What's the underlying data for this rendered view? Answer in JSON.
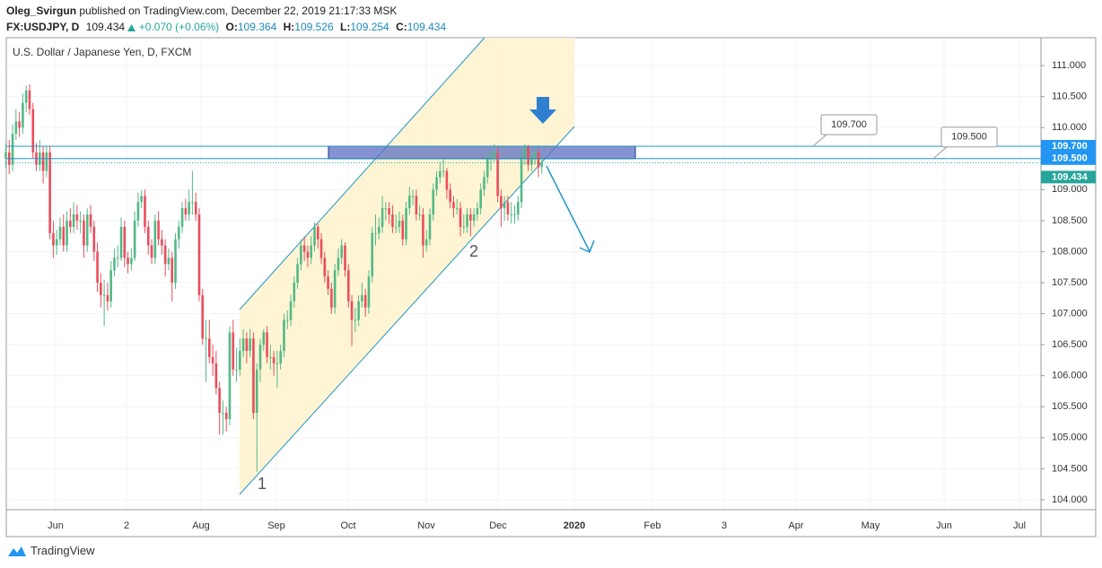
{
  "chart_data": {
    "type": "candlestick",
    "publisher": "Oleg_Svirgun",
    "published_text": "published on TradingView.com, December 22, 2019 21:17:33 MSK",
    "symbol": "FX:USDJPY, D",
    "change": "+0.070 (+0.06%)",
    "ohlc_labels": [
      "O:",
      "H:",
      "L:",
      "C:"
    ],
    "title": "U.S. Dollar / Japanese Yen, D, FXCM",
    "brand": "TradingView",
    "up_color": "#53b987",
    "down_color": "#eb4d5c",
    "ylim": [
      103.84,
      111.45
    ],
    "yticks": [
      {
        "value": 104,
        "label": "104.000"
      },
      {
        "value": 104.5,
        "label": "104.500"
      },
      {
        "value": 105,
        "label": "105.000"
      },
      {
        "value": 105.5,
        "label": "105.500"
      },
      {
        "value": 106,
        "label": "106.000"
      },
      {
        "value": 106.5,
        "label": "106.500"
      },
      {
        "value": 107,
        "label": "107.000"
      },
      {
        "value": 107.5,
        "label": "107.500"
      },
      {
        "value": 108,
        "label": "108.000"
      },
      {
        "value": 108.5,
        "label": "108.500"
      },
      {
        "value": 109,
        "label": "109.000"
      },
      {
        "value": 109.5,
        "label": "109.500"
      },
      {
        "value": 110,
        "label": "110.000"
      },
      {
        "value": 110.5,
        "label": "110.500"
      },
      {
        "value": 111,
        "label": "111.000"
      }
    ],
    "x_tick_labels": [
      "Jun",
      "2",
      "Aug",
      "Sep",
      "Oct",
      "Nov",
      "Dec",
      "2020",
      "Feb",
      "3",
      "Apr",
      "May",
      "Jun",
      "Jul"
    ],
    "horizontal_lines": [
      {
        "value": 109.7,
        "label": "109.700"
      },
      {
        "value": 109.5,
        "label": "109.500"
      }
    ],
    "zone": [
      109.5,
      109.7
    ],
    "annotations": [
      "1",
      "2"
    ],
    "ohlc": [
      [
        109.5,
        109.75,
        109.35,
        109.6
      ],
      [
        109.6,
        109.8,
        109.25,
        109.4
      ],
      [
        109.4,
        110.05,
        109.3,
        109.9
      ],
      [
        109.9,
        110.3,
        109.8,
        110.1
      ],
      [
        110.1,
        110.25,
        109.85,
        110.0
      ],
      [
        110.0,
        110.55,
        109.9,
        110.4
      ],
      [
        110.4,
        110.68,
        110.25,
        110.6
      ],
      [
        110.6,
        110.7,
        110.2,
        110.3
      ],
      [
        110.3,
        110.4,
        109.5,
        109.6
      ],
      [
        109.6,
        109.75,
        109.3,
        109.4
      ],
      [
        109.4,
        109.8,
        109.3,
        109.6
      ],
      [
        109.6,
        109.7,
        109.1,
        109.3
      ],
      [
        109.3,
        109.7,
        109.2,
        109.6
      ],
      [
        109.6,
        109.7,
        108.2,
        108.3
      ],
      [
        108.3,
        108.5,
        107.9,
        108.1
      ],
      [
        108.1,
        108.35,
        107.95,
        108.2
      ],
      [
        108.2,
        108.55,
        108.1,
        108.4
      ],
      [
        108.4,
        108.6,
        108.0,
        108.1
      ],
      [
        108.1,
        108.65,
        108.0,
        108.5
      ],
      [
        108.5,
        108.7,
        108.3,
        108.4
      ],
      [
        108.4,
        108.8,
        108.3,
        108.6
      ],
      [
        108.6,
        108.75,
        108.35,
        108.5
      ],
      [
        108.5,
        108.65,
        108.3,
        108.5
      ],
      [
        108.5,
        108.6,
        107.9,
        108.1
      ],
      [
        108.1,
        108.7,
        108.0,
        108.6
      ],
      [
        108.6,
        108.75,
        108.3,
        108.4
      ],
      [
        108.4,
        108.5,
        107.85,
        108.0
      ],
      [
        108.0,
        108.15,
        107.35,
        107.5
      ],
      [
        107.5,
        107.65,
        107.1,
        107.3
      ],
      [
        107.3,
        107.55,
        106.8,
        107.3
      ],
      [
        107.3,
        107.5,
        107.05,
        107.2
      ],
      [
        107.2,
        107.85,
        107.1,
        107.7
      ],
      [
        107.7,
        108.05,
        107.6,
        107.9
      ],
      [
        107.9,
        108.1,
        107.75,
        107.9
      ],
      [
        107.9,
        108.55,
        107.85,
        108.4
      ],
      [
        108.4,
        108.5,
        107.75,
        107.9
      ],
      [
        107.9,
        108.0,
        107.65,
        107.8
      ],
      [
        107.8,
        108.05,
        107.7,
        107.9
      ],
      [
        107.9,
        108.65,
        107.85,
        108.5
      ],
      [
        108.5,
        108.95,
        108.4,
        108.8
      ],
      [
        108.8,
        108.99,
        108.7,
        108.9
      ],
      [
        108.9,
        109.0,
        108.3,
        108.4
      ],
      [
        108.4,
        108.5,
        107.95,
        108.1
      ],
      [
        108.1,
        108.2,
        107.8,
        107.9
      ],
      [
        107.9,
        108.6,
        107.8,
        108.5
      ],
      [
        108.5,
        108.65,
        108.1,
        108.2
      ],
      [
        108.2,
        108.35,
        107.95,
        108.1
      ],
      [
        108.1,
        108.2,
        107.6,
        107.8
      ],
      [
        107.8,
        108.05,
        107.7,
        107.9
      ],
      [
        107.9,
        108.0,
        107.2,
        107.5
      ],
      [
        107.5,
        108.3,
        107.4,
        108.2
      ],
      [
        108.2,
        108.5,
        108.05,
        108.4
      ],
      [
        108.4,
        108.8,
        108.3,
        108.7
      ],
      [
        108.7,
        108.85,
        108.5,
        108.6
      ],
      [
        108.6,
        109.0,
        108.5,
        108.8
      ],
      [
        108.8,
        109.3,
        108.6,
        108.8
      ],
      [
        108.8,
        108.95,
        108.5,
        108.6
      ],
      [
        108.6,
        108.7,
        107.2,
        107.3
      ],
      [
        107.3,
        107.4,
        106.5,
        106.6
      ],
      [
        106.6,
        106.9,
        105.9,
        106.6
      ],
      [
        106.6,
        106.9,
        106.2,
        106.3
      ],
      [
        106.3,
        106.5,
        106.0,
        106.2
      ],
      [
        106.2,
        106.4,
        105.7,
        105.8
      ],
      [
        105.8,
        105.9,
        105.05,
        105.4
      ],
      [
        105.4,
        105.6,
        105.05,
        105.4
      ],
      [
        105.4,
        105.5,
        105.1,
        105.3
      ],
      [
        105.3,
        106.8,
        105.2,
        106.7
      ],
      [
        106.7,
        106.9,
        106.0,
        106.1
      ],
      [
        106.1,
        106.45,
        105.9,
        106.1
      ],
      [
        106.1,
        106.6,
        106.0,
        106.4
      ],
      [
        106.4,
        106.75,
        106.3,
        106.6
      ],
      [
        106.6,
        106.7,
        106.2,
        106.4
      ],
      [
        106.4,
        106.75,
        106.3,
        106.6
      ],
      [
        106.6,
        106.7,
        105.3,
        105.4
      ],
      [
        105.4,
        106.2,
        104.45,
        106.1
      ],
      [
        106.1,
        106.6,
        105.9,
        106.5
      ],
      [
        106.5,
        106.75,
        106.4,
        106.7
      ],
      [
        106.7,
        106.8,
        106.2,
        106.3
      ],
      [
        106.3,
        106.5,
        106.1,
        106.3
      ],
      [
        106.3,
        106.4,
        106.0,
        106.2
      ],
      [
        106.2,
        106.4,
        105.8,
        106.2
      ],
      [
        106.2,
        106.5,
        106.1,
        106.4
      ],
      [
        106.4,
        107.0,
        106.3,
        106.9
      ],
      [
        106.9,
        107.05,
        106.75,
        106.9
      ],
      [
        106.9,
        107.3,
        106.8,
        107.2
      ],
      [
        107.2,
        107.6,
        107.1,
        107.5
      ],
      [
        107.5,
        107.9,
        107.4,
        107.8
      ],
      [
        107.8,
        108.2,
        107.7,
        108.1
      ],
      [
        108.1,
        108.25,
        107.85,
        108.0
      ],
      [
        108.0,
        108.1,
        107.75,
        107.9
      ],
      [
        107.9,
        108.25,
        107.8,
        108.1
      ],
      [
        108.1,
        108.47,
        108.0,
        108.4
      ],
      [
        108.4,
        108.45,
        108.05,
        108.2
      ],
      [
        108.2,
        108.3,
        107.8,
        107.9
      ],
      [
        107.9,
        108.0,
        107.5,
        107.6
      ],
      [
        107.6,
        107.7,
        107.3,
        107.4
      ],
      [
        107.4,
        107.5,
        107.0,
        107.1
      ],
      [
        107.1,
        107.8,
        107.0,
        107.7
      ],
      [
        107.7,
        108.05,
        107.6,
        107.9
      ],
      [
        107.9,
        108.2,
        107.8,
        108.1
      ],
      [
        108.1,
        108.15,
        107.6,
        107.7
      ],
      [
        107.7,
        107.8,
        107.1,
        107.2
      ],
      [
        107.2,
        107.3,
        106.48,
        106.9
      ],
      [
        106.9,
        107.1,
        106.7,
        106.9
      ],
      [
        106.9,
        107.3,
        106.8,
        107.2
      ],
      [
        107.2,
        107.5,
        107.1,
        107.3
      ],
      [
        107.3,
        107.4,
        106.95,
        107.1
      ],
      [
        107.1,
        107.7,
        107.0,
        107.6
      ],
      [
        107.6,
        108.4,
        107.5,
        108.3
      ],
      [
        108.3,
        108.6,
        108.1,
        108.3
      ],
      [
        108.3,
        108.55,
        108.2,
        108.4
      ],
      [
        108.4,
        108.9,
        108.3,
        108.7
      ],
      [
        108.7,
        108.8,
        108.5,
        108.7
      ],
      [
        108.7,
        108.8,
        108.45,
        108.6
      ],
      [
        108.6,
        108.75,
        108.3,
        108.4
      ],
      [
        108.4,
        108.6,
        108.3,
        108.4
      ],
      [
        108.4,
        108.65,
        108.3,
        108.5
      ],
      [
        108.5,
        108.6,
        108.1,
        108.2
      ],
      [
        108.2,
        108.8,
        108.1,
        108.7
      ],
      [
        108.7,
        109.05,
        108.6,
        108.9
      ],
      [
        108.9,
        109.0,
        108.75,
        108.9
      ],
      [
        108.9,
        109.0,
        108.5,
        108.6
      ],
      [
        108.6,
        108.75,
        108.5,
        108.6
      ],
      [
        108.6,
        108.7,
        107.9,
        108.1
      ],
      [
        108.1,
        108.35,
        108.0,
        108.2
      ],
      [
        108.2,
        108.7,
        108.1,
        108.6
      ],
      [
        108.6,
        109.1,
        108.5,
        109.0
      ],
      [
        109.0,
        109.3,
        108.9,
        109.2
      ],
      [
        109.2,
        109.45,
        109.1,
        109.3
      ],
      [
        109.3,
        109.5,
        109.2,
        109.3
      ],
      [
        109.3,
        109.35,
        108.85,
        109.0
      ],
      [
        109.0,
        109.1,
        108.7,
        108.8
      ],
      [
        108.8,
        108.9,
        108.55,
        108.7
      ],
      [
        108.7,
        108.85,
        108.6,
        108.7
      ],
      [
        108.7,
        108.8,
        108.25,
        108.4
      ],
      [
        108.4,
        108.6,
        108.3,
        108.4
      ],
      [
        108.4,
        108.7,
        108.3,
        108.6
      ],
      [
        108.6,
        108.7,
        108.25,
        108.5
      ],
      [
        108.5,
        108.7,
        108.4,
        108.6
      ],
      [
        108.6,
        108.8,
        108.5,
        108.7
      ],
      [
        108.7,
        109.1,
        108.6,
        109.0
      ],
      [
        109.0,
        109.3,
        108.9,
        109.2
      ],
      [
        109.2,
        109.6,
        109.1,
        109.5
      ],
      [
        109.5,
        109.65,
        109.3,
        109.5
      ],
      [
        109.5,
        109.73,
        109.45,
        109.6
      ],
      [
        109.6,
        109.7,
        108.8,
        108.9
      ],
      [
        108.9,
        109.0,
        108.4,
        108.7
      ],
      [
        108.7,
        108.9,
        108.5,
        108.8
      ],
      [
        108.8,
        108.9,
        108.5,
        108.6
      ],
      [
        108.6,
        108.8,
        108.45,
        108.6
      ],
      [
        108.6,
        108.75,
        108.45,
        108.6
      ],
      [
        108.6,
        108.9,
        108.5,
        108.8
      ],
      [
        108.8,
        109.6,
        108.7,
        109.5
      ],
      [
        109.5,
        109.73,
        109.4,
        109.7
      ],
      [
        109.7,
        109.72,
        109.3,
        109.4
      ],
      [
        109.4,
        109.6,
        109.3,
        109.5
      ],
      [
        109.5,
        109.7,
        109.4,
        109.6
      ],
      [
        109.6,
        109.65,
        109.2,
        109.36
      ],
      [
        109.364,
        109.526,
        109.254,
        109.434
      ]
    ]
  }
}
